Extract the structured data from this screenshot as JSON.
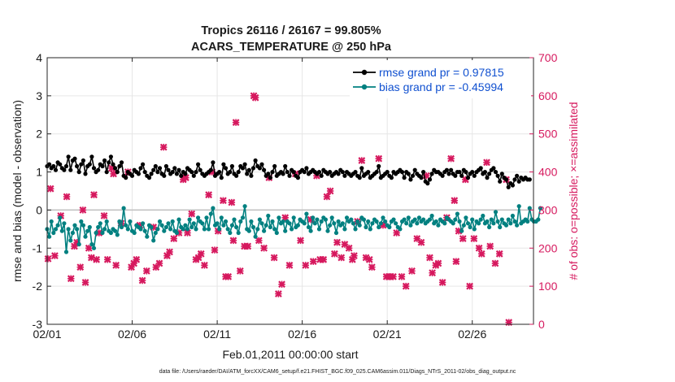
{
  "chart_data": {
    "type": "line",
    "title": "Tropics 26116 / 26167 = 99.805%",
    "subtitle": "ACARS_TEMPERATURE @ 250 hPa",
    "xlabel": "Feb.01,2011 00:00:00 start",
    "ylabel_left": "rmse and bias (model - observation)",
    "ylabel_right": "# of obs: o=possible; ×=assimilated",
    "footer": "data file: /Users/raeder/DAI/ATM_forcXX/CAM6_setup/f.e21.FHIST_BGC.f09_025.CAM6assim.011/Diags_NTrS_2011-02/obs_diag_output.nc",
    "xlim": [
      1,
      29.6
    ],
    "ylim_left": [
      -3,
      4
    ],
    "ylim_right": [
      0,
      700
    ],
    "x_ticks": [
      {
        "value": 1,
        "label": "02/01"
      },
      {
        "value": 6,
        "label": "02/06"
      },
      {
        "value": 11,
        "label": "02/11"
      },
      {
        "value": 16,
        "label": "02/16"
      },
      {
        "value": 21,
        "label": "02/21"
      },
      {
        "value": 26,
        "label": "02/26"
      }
    ],
    "y_ticks_left": [
      "-3",
      "-2",
      "-1",
      "0",
      "1",
      "2",
      "3",
      "4"
    ],
    "y_ticks_right": [
      "0",
      "100",
      "200",
      "300",
      "400",
      "500",
      "600",
      "700"
    ],
    "x_start": 1.0,
    "x_step": 0.125,
    "series": [
      {
        "name": "rmse grand pr = 0.97815",
        "color": "#000000",
        "values": [
          1.15,
          1.2,
          1.1,
          1.15,
          1.05,
          1.25,
          1.2,
          1.1,
          1.05,
          1.15,
          1.4,
          1.05,
          1.3,
          1.35,
          1.15,
          1.0,
          1.2,
          1.3,
          0.95,
          1.15,
          1.2,
          1.4,
          1.1,
          1.0,
          1.05,
          1.2,
          1.15,
          1.3,
          1.0,
          1.25,
          1.4,
          1.2,
          1.1,
          1.0,
          1.15,
          1.25,
          0.9,
          0.85,
          1.0,
          0.95,
          0.9,
          1.05,
          1.0,
          0.95,
          1.1,
          1.2,
          1.0,
          0.9,
          0.85,
          0.95,
          1.05,
          1.15,
          1.0,
          1.1,
          0.95,
          0.9,
          1.15,
          1.05,
          0.95,
          1.0,
          1.1,
          0.95,
          1.05,
          0.9,
          1.0,
          0.95,
          1.1,
          1.05,
          1.0,
          0.9,
          1.0,
          1.2,
          1.05,
          0.95,
          0.9,
          0.95,
          1.0,
          1.05,
          1.25,
          0.9,
          0.95,
          1.0,
          0.85,
          1.2,
          1.1,
          0.95,
          1.0,
          1.15,
          0.95,
          0.9,
          1.0,
          1.15,
          1.1,
          1.2,
          0.95,
          1.05,
          0.9,
          1.1,
          1.3,
          1.15,
          1.1,
          1.2,
          1.05,
          0.9,
          0.95,
          0.85,
          1.0,
          1.15,
          0.9,
          0.95,
          1.0,
          0.95,
          1.15,
          1.0,
          0.9,
          1.05,
          1.0,
          0.9,
          0.85,
          1.0,
          1.05,
          1.0,
          1.1,
          0.95,
          1.0,
          1.05,
          1.0,
          0.95,
          1.0,
          0.9,
          1.05,
          1.0,
          0.95,
          1.0,
          0.9,
          0.95,
          1.0,
          0.95,
          1.05,
          1.0,
          0.9,
          1.0,
          0.95,
          0.9,
          0.95,
          1.0,
          0.9,
          0.85,
          1.1,
          0.9,
          0.95,
          1.0,
          0.85,
          0.9,
          0.95,
          1.0,
          1.15,
          0.85,
          0.9,
          0.95,
          1.0,
          0.9,
          0.85,
          1.0,
          0.95,
          1.0,
          1.05,
          1.0,
          0.85,
          1.0,
          0.95,
          0.8,
          0.9,
          1.05,
          0.95,
          0.9,
          0.85,
          1.0,
          0.75,
          0.7,
          0.8,
          0.95,
          1.05,
          1.0,
          1.0,
          0.95,
          0.9,
          1.0,
          1.05,
          0.95,
          1.05,
          0.95,
          0.9,
          1.0,
          1.0,
          0.9,
          1.05,
          1.0,
          0.85,
          0.95,
          1.0,
          0.9,
          1.0,
          1.05,
          1.1,
          0.95,
          1.0,
          0.85,
          0.95,
          1.05,
          1.1,
          1.0,
          0.9,
          0.75,
          0.95,
          0.85,
          0.8,
          0.6,
          0.7,
          0.65,
          0.8,
          0.9,
          0.75,
          0.85,
          0.8,
          0.85,
          0.8,
          0.8
        ]
      },
      {
        "name": "bias grand pr = -0.45994",
        "color": "#008080",
        "values": [
          -0.5,
          -0.7,
          -0.3,
          -0.6,
          -0.5,
          -0.4,
          -0.2,
          -0.55,
          -0.35,
          -1.1,
          -0.5,
          -0.8,
          -0.6,
          -0.4,
          -0.5,
          -0.9,
          -0.3,
          -0.4,
          -0.7,
          -0.55,
          -0.45,
          -0.9,
          -1.0,
          -0.6,
          -0.45,
          -0.35,
          -0.6,
          -0.5,
          -0.3,
          -0.55,
          -0.6,
          -0.5,
          -0.55,
          -0.65,
          -0.3,
          -0.45,
          0.05,
          -0.4,
          -0.5,
          -0.3,
          -0.55,
          -0.6,
          -0.4,
          -0.45,
          -0.5,
          -0.35,
          -0.55,
          -0.7,
          -0.4,
          -0.45,
          -0.8,
          -0.6,
          -0.5,
          -0.3,
          -0.4,
          -0.55,
          -0.45,
          -0.35,
          -0.5,
          -0.3,
          -0.55,
          -0.6,
          -0.25,
          -0.45,
          -0.5,
          -0.4,
          -0.5,
          -0.25,
          -0.45,
          -0.35,
          -0.5,
          -0.2,
          -0.3,
          -0.35,
          -0.5,
          -0.2,
          -0.5,
          -0.1,
          0.05,
          -0.4,
          -0.35,
          -0.5,
          -0.2,
          -0.4,
          -0.3,
          -0.5,
          -0.6,
          -0.4,
          -0.25,
          -0.45,
          -0.6,
          -0.3,
          -0.2,
          0.1,
          -0.5,
          -0.55,
          -0.3,
          -0.45,
          -0.7,
          -0.5,
          -0.25,
          -0.35,
          -0.55,
          -0.4,
          -0.15,
          -0.45,
          -0.3,
          -0.5,
          -0.6,
          -0.2,
          -0.35,
          -0.3,
          -0.55,
          -0.3,
          -0.35,
          -0.5,
          -0.2,
          -0.45,
          -0.4,
          -0.25,
          -0.3,
          -0.35,
          -0.1,
          -0.45,
          -0.55,
          -0.2,
          -0.35,
          -0.25,
          -0.5,
          -0.3,
          -0.2,
          -0.25,
          -0.55,
          -0.4,
          -0.2,
          -0.35,
          -0.6,
          -0.3,
          -0.4,
          -0.35,
          -0.5,
          -0.2,
          -0.3,
          -0.25,
          -0.35,
          -0.5,
          -0.3,
          -0.4,
          -0.2,
          -0.25,
          -0.45,
          -0.3,
          -0.5,
          -0.35,
          -0.25,
          -0.3,
          -0.45,
          -0.35,
          -0.2,
          -0.3,
          -0.4,
          -0.45,
          -0.3,
          -0.25,
          -0.35,
          -0.45,
          -0.5,
          -0.3,
          -0.25,
          -0.35,
          -0.2,
          -0.4,
          -0.3,
          -0.25,
          -0.35,
          -0.2,
          -0.3,
          -0.25,
          -0.35,
          -0.3,
          -0.25,
          -0.15,
          -0.35,
          -0.3,
          -0.4,
          -0.25,
          -0.3,
          -0.35,
          -0.2,
          -0.25,
          -0.3,
          -0.35,
          -0.25,
          -0.1,
          -0.3,
          -0.55,
          -0.4,
          -0.2,
          -0.35,
          -0.45,
          -0.25,
          -0.5,
          -0.3,
          -0.35,
          -0.25,
          -0.15,
          -0.35,
          -0.3,
          -0.45,
          -0.25,
          -0.35,
          -0.05,
          -0.3,
          -0.45,
          -0.25,
          -0.35,
          -0.4,
          -0.25,
          -0.35,
          -0.15,
          -0.3,
          -0.4,
          0.1,
          -0.35,
          -0.3,
          -0.25,
          -0.3,
          0.05,
          -0.25,
          -0.3,
          -0.3,
          -0.25,
          0.05
        ]
      }
    ],
    "obs_assimilated": {
      "name": "# of obs assimilated",
      "color": "#d6195e",
      "points": [
        [
          1.05,
          172
        ],
        [
          1.2,
          356
        ],
        [
          1.45,
          180
        ],
        [
          1.8,
          285
        ],
        [
          2.15,
          335
        ],
        [
          2.4,
          120
        ],
        [
          2.6,
          205
        ],
        [
          2.75,
          215
        ],
        [
          2.95,
          150
        ],
        [
          3.1,
          300
        ],
        [
          3.25,
          110
        ],
        [
          3.45,
          200
        ],
        [
          3.6,
          175
        ],
        [
          3.75,
          340
        ],
        [
          3.9,
          170
        ],
        [
          4.05,
          240
        ],
        [
          4.35,
          285
        ],
        [
          4.55,
          170
        ],
        [
          4.8,
          410
        ],
        [
          4.9,
          395
        ],
        [
          5.05,
          155
        ],
        [
          5.35,
          265
        ],
        [
          5.75,
          400
        ],
        [
          5.95,
          150
        ],
        [
          6.1,
          160
        ],
        [
          6.25,
          170
        ],
        [
          6.45,
          260
        ],
        [
          6.6,
          115
        ],
        [
          6.85,
          140
        ],
        [
          7.25,
          255
        ],
        [
          7.4,
          150
        ],
        [
          7.6,
          160
        ],
        [
          7.85,
          465
        ],
        [
          8.05,
          180
        ],
        [
          8.2,
          190
        ],
        [
          8.45,
          225
        ],
        [
          8.75,
          240
        ],
        [
          9.0,
          380
        ],
        [
          9.15,
          385
        ],
        [
          9.25,
          240
        ],
        [
          9.5,
          290
        ],
        [
          9.75,
          170
        ],
        [
          9.9,
          175
        ],
        [
          10.05,
          185
        ],
        [
          10.25,
          155
        ],
        [
          10.5,
          340
        ],
        [
          10.7,
          400
        ],
        [
          10.85,
          195
        ],
        [
          11.05,
          245
        ],
        [
          11.35,
          325
        ],
        [
          11.5,
          125
        ],
        [
          11.65,
          125
        ],
        [
          11.85,
          320
        ],
        [
          11.95,
          220
        ],
        [
          12.1,
          530
        ],
        [
          12.35,
          140
        ],
        [
          12.6,
          205
        ],
        [
          12.8,
          205
        ],
        [
          13.15,
          600
        ],
        [
          13.25,
          595
        ],
        [
          13.45,
          220
        ],
        [
          13.75,
          200
        ],
        [
          14.05,
          385
        ],
        [
          14.35,
          175
        ],
        [
          14.6,
          80
        ],
        [
          14.8,
          105
        ],
        [
          15.0,
          280
        ],
        [
          15.25,
          155
        ],
        [
          15.6,
          395
        ],
        [
          15.9,
          220
        ],
        [
          16.2,
          155
        ],
        [
          16.5,
          275
        ],
        [
          16.65,
          165
        ],
        [
          16.85,
          390
        ],
        [
          17.05,
          170
        ],
        [
          17.25,
          170
        ],
        [
          17.45,
          335
        ],
        [
          17.65,
          350
        ],
        [
          17.9,
          185
        ],
        [
          18.05,
          215
        ],
        [
          18.3,
          175
        ],
        [
          18.5,
          210
        ],
        [
          18.75,
          200
        ],
        [
          18.95,
          170
        ],
        [
          19.05,
          180
        ],
        [
          19.25,
          270
        ],
        [
          19.5,
          430
        ],
        [
          19.75,
          175
        ],
        [
          19.95,
          170
        ],
        [
          20.1,
          150
        ],
        [
          20.5,
          435
        ],
        [
          20.75,
          260
        ],
        [
          20.95,
          125
        ],
        [
          21.15,
          125
        ],
        [
          21.35,
          125
        ],
        [
          21.55,
          240
        ],
        [
          21.85,
          125
        ],
        [
          22.1,
          100
        ],
        [
          22.45,
          140
        ],
        [
          22.75,
          225
        ],
        [
          23.0,
          215
        ],
        [
          23.3,
          390
        ],
        [
          23.5,
          175
        ],
        [
          23.65,
          135
        ],
        [
          23.85,
          155
        ],
        [
          24.0,
          160
        ],
        [
          24.25,
          110
        ],
        [
          24.5,
          280
        ],
        [
          24.75,
          435
        ],
        [
          24.95,
          325
        ],
        [
          25.05,
          165
        ],
        [
          25.2,
          245
        ],
        [
          25.45,
          225
        ],
        [
          25.6,
          380
        ],
        [
          25.85,
          100
        ],
        [
          26.1,
          225
        ],
        [
          26.4,
          200
        ],
        [
          26.55,
          185
        ],
        [
          26.85,
          425
        ],
        [
          27.05,
          205
        ],
        [
          27.35,
          160
        ],
        [
          27.6,
          185
        ],
        [
          28.0,
          380
        ],
        [
          28.15,
          5
        ]
      ]
    }
  }
}
